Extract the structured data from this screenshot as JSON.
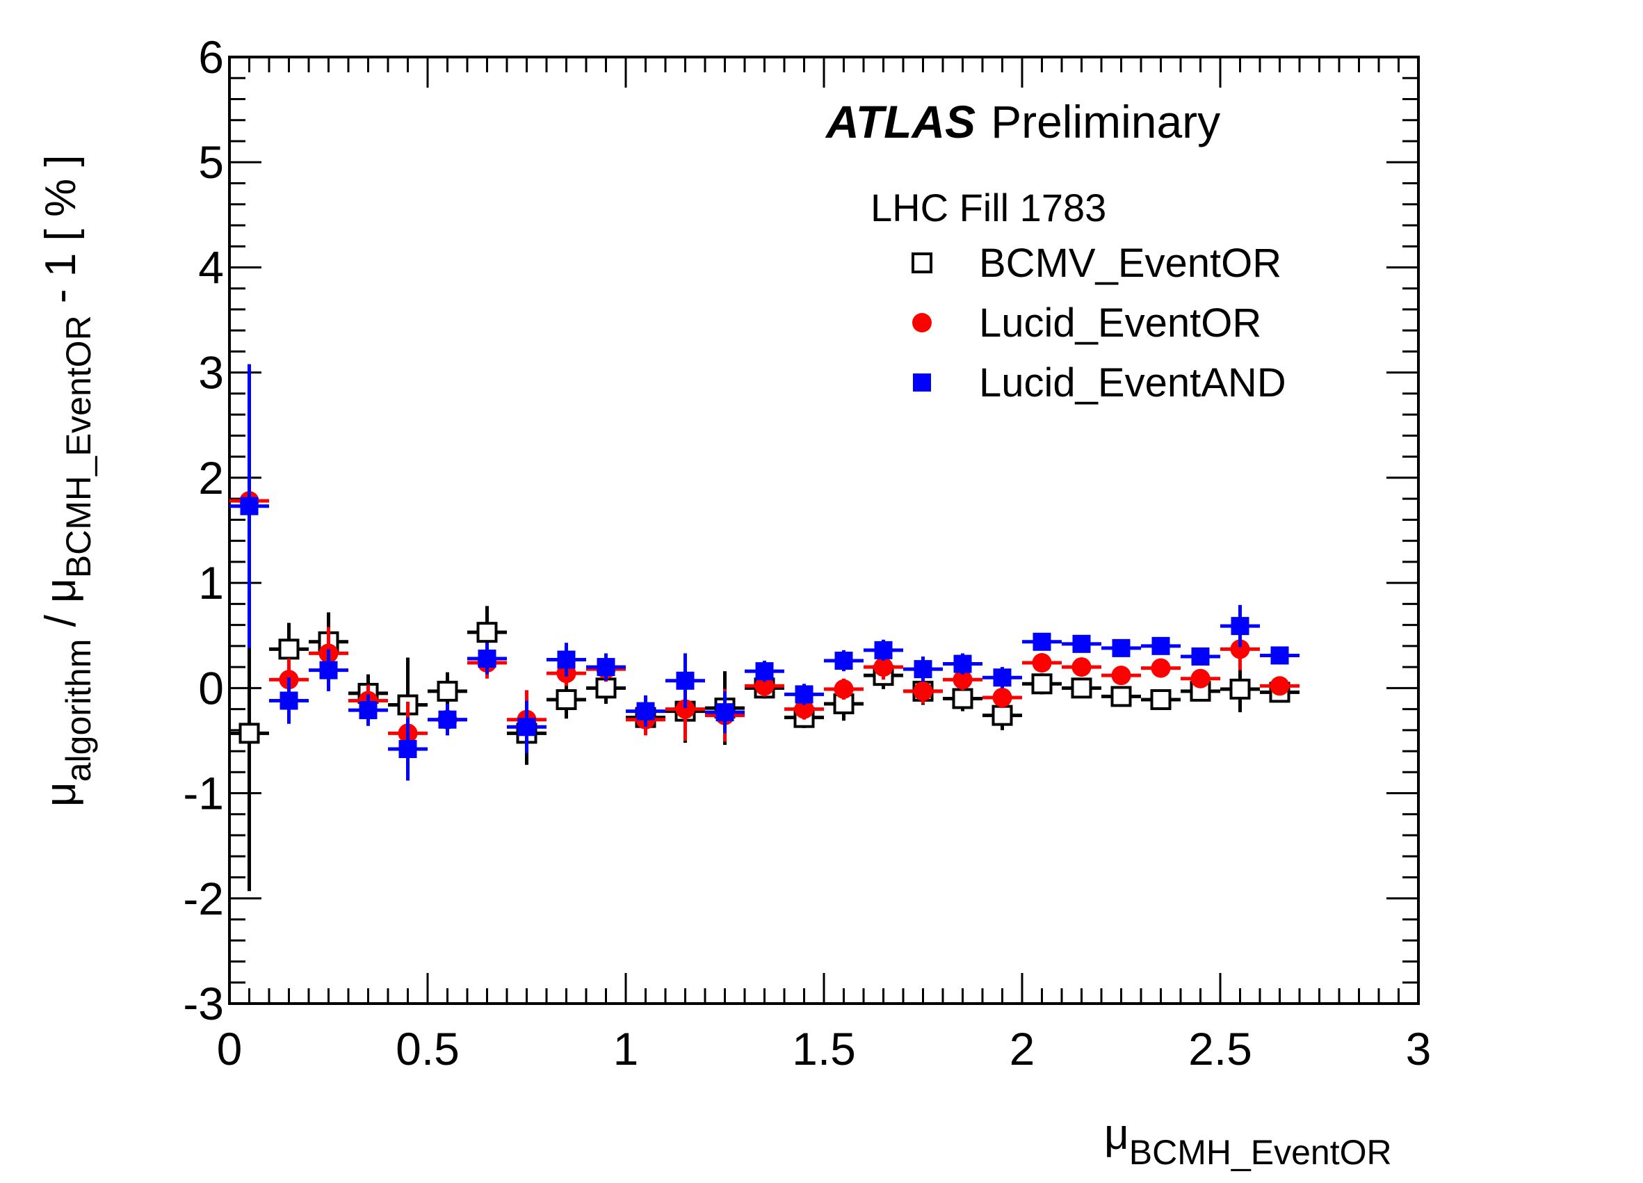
{
  "chart_data": {
    "type": "scatter",
    "xlabel_base": "μ",
    "xlabel_sub": "BCMH_EventOR",
    "ylabel_mu1": "μ",
    "ylabel_sub1": "algorithm",
    "ylabel_slash": " / ",
    "ylabel_mu2": "μ",
    "ylabel_sub2": "BCMH_EventOR",
    "ylabel_tail": " - 1 [ % ]",
    "xlim": [
      0,
      3
    ],
    "ylim": [
      -3,
      6
    ],
    "x_ticks": [
      0,
      0.5,
      1,
      1.5,
      2,
      2.5,
      3
    ],
    "x_tick_labels": [
      "0",
      "0.5",
      "1",
      "1.5",
      "2",
      "2.5",
      "3"
    ],
    "y_ticks": [
      -3,
      -2,
      -1,
      0,
      1,
      2,
      3,
      4,
      5,
      6
    ],
    "y_tick_labels": [
      "-3",
      "-2",
      "-1",
      "0",
      "1",
      "2",
      "3",
      "4",
      "5",
      "6"
    ],
    "x_bin_halfwidth": 0.05,
    "annotation_bold": "ATLAS",
    "annotation_normal": "Preliminary",
    "legend_title": "LHC Fill 1783",
    "legend_position": "top-right",
    "series": [
      {
        "name": "BCMV_EventOR",
        "marker": "open-square",
        "color": "#000000",
        "x": [
          0.05,
          0.15,
          0.25,
          0.35,
          0.45,
          0.55,
          0.65,
          0.75,
          0.85,
          0.95,
          1.05,
          1.15,
          1.25,
          1.35,
          1.45,
          1.55,
          1.65,
          1.75,
          1.85,
          1.95,
          2.05,
          2.15,
          2.25,
          2.35,
          2.45,
          2.55,
          2.65
        ],
        "y": [
          -0.43,
          0.37,
          0.44,
          -0.05,
          -0.16,
          -0.03,
          0.53,
          -0.43,
          -0.11,
          0.0,
          -0.28,
          -0.22,
          -0.19,
          0.0,
          -0.28,
          -0.15,
          0.12,
          -0.03,
          -0.1,
          -0.26,
          0.04,
          0.0,
          -0.08,
          -0.11,
          -0.03,
          -0.01,
          -0.04
        ],
        "yerr": [
          1.5,
          0.25,
          0.28,
          0.18,
          0.45,
          0.18,
          0.25,
          0.3,
          0.18,
          0.15,
          0.15,
          0.3,
          0.35,
          0.1,
          0.1,
          0.16,
          0.13,
          0.13,
          0.12,
          0.14,
          0.1,
          0.08,
          0.07,
          0.07,
          0.08,
          0.22,
          0.09
        ]
      },
      {
        "name": "Lucid_EventOR",
        "marker": "filled-circle",
        "color": "#ff0000",
        "x": [
          0.05,
          0.15,
          0.25,
          0.35,
          0.45,
          0.55,
          0.65,
          0.75,
          0.85,
          0.95,
          1.05,
          1.15,
          1.25,
          1.35,
          1.45,
          1.55,
          1.65,
          1.75,
          1.85,
          1.95,
          2.05,
          2.15,
          2.25,
          2.35,
          2.45,
          2.55,
          2.65
        ],
        "y": [
          1.78,
          0.08,
          0.33,
          -0.12,
          -0.43,
          -0.3,
          0.24,
          -0.3,
          0.14,
          0.18,
          -0.3,
          -0.2,
          -0.26,
          0.02,
          -0.2,
          -0.01,
          0.2,
          -0.03,
          0.08,
          -0.09,
          0.24,
          0.2,
          0.12,
          0.19,
          0.09,
          0.37,
          0.02
        ],
        "yerr": [
          1.2,
          0.2,
          0.25,
          0.15,
          0.3,
          0.15,
          0.15,
          0.28,
          0.12,
          0.12,
          0.15,
          0.3,
          0.25,
          0.1,
          0.1,
          0.1,
          0.12,
          0.12,
          0.1,
          0.1,
          0.08,
          0.07,
          0.06,
          0.07,
          0.07,
          0.2,
          0.08
        ]
      },
      {
        "name": "Lucid_EventAND",
        "marker": "filled-square",
        "color": "#0000ff",
        "x": [
          0.05,
          0.15,
          0.25,
          0.35,
          0.45,
          0.55,
          0.65,
          0.75,
          0.85,
          0.95,
          1.05,
          1.15,
          1.25,
          1.35,
          1.45,
          1.55,
          1.65,
          1.75,
          1.85,
          1.95,
          2.05,
          2.15,
          2.25,
          2.35,
          2.45,
          2.55,
          2.65
        ],
        "y": [
          1.73,
          -0.12,
          0.17,
          -0.21,
          -0.58,
          -0.3,
          0.28,
          -0.37,
          0.27,
          0.2,
          -0.22,
          0.07,
          -0.23,
          0.16,
          -0.06,
          0.26,
          0.36,
          0.18,
          0.23,
          0.1,
          0.44,
          0.42,
          0.38,
          0.4,
          0.3,
          0.59,
          0.31
        ],
        "yerr": [
          1.35,
          0.22,
          0.2,
          0.15,
          0.3,
          0.15,
          0.15,
          0.25,
          0.16,
          0.13,
          0.15,
          0.26,
          0.2,
          0.1,
          0.1,
          0.1,
          0.1,
          0.12,
          0.1,
          0.1,
          0.08,
          0.07,
          0.07,
          0.07,
          0.07,
          0.2,
          0.07
        ]
      }
    ]
  }
}
